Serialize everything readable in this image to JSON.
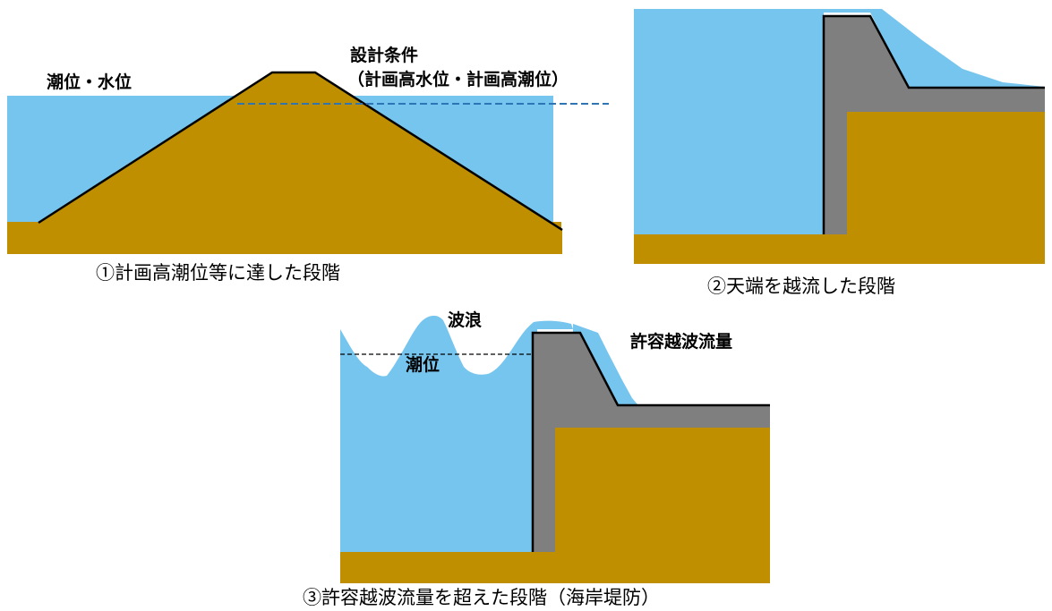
{
  "panel1": {
    "water_label": "潮位・水位",
    "design_label_line1": "設計条件",
    "design_label_line2": "（計画高水位・計画高潮位）",
    "caption": "①計画高潮位等に達した段階"
  },
  "panel2": {
    "caption": "②天端を越流した段階"
  },
  "panel3": {
    "wave_label": "波浪",
    "tide_label": "潮位",
    "overtopping_label": "許容越波流量",
    "caption": "③許容越波流量を超えた段階（海岸堤防）"
  },
  "colors": {
    "water": "#76c5ee",
    "soil": "#bf8f00",
    "concrete": "#7f7f7f",
    "design_line": "#2e75b6"
  }
}
